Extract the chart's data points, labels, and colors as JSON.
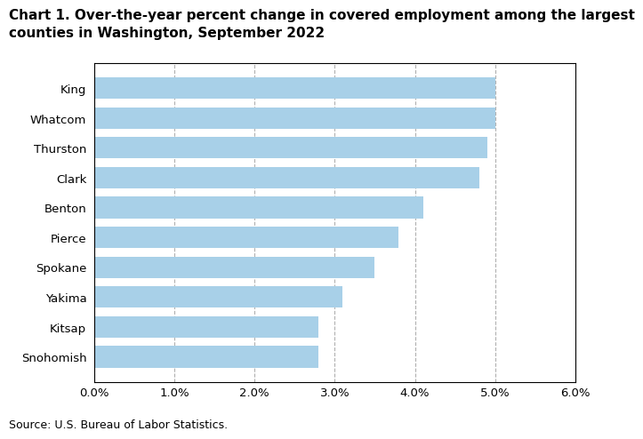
{
  "title_line1": "Chart 1. Over-the-year percent change in covered employment among the largest",
  "title_line2": "counties in Washington, September 2022",
  "categories": [
    "Snohomish",
    "Kitsap",
    "Yakima",
    "Spokane",
    "Pierce",
    "Benton",
    "Clark",
    "Thurston",
    "Whatcom",
    "King"
  ],
  "values": [
    0.028,
    0.028,
    0.031,
    0.035,
    0.038,
    0.041,
    0.048,
    0.049,
    0.05,
    0.05
  ],
  "bar_color": "#a8d0e8",
  "xlim": [
    0,
    0.06
  ],
  "xticks": [
    0.0,
    0.01,
    0.02,
    0.03,
    0.04,
    0.05,
    0.06
  ],
  "source_text": "Source: U.S. Bureau of Labor Statistics.",
  "title_fontsize": 11,
  "tick_fontsize": 9.5,
  "source_fontsize": 9,
  "background_color": "#ffffff",
  "grid_color": "#b0b0b0",
  "bar_height": 0.72
}
